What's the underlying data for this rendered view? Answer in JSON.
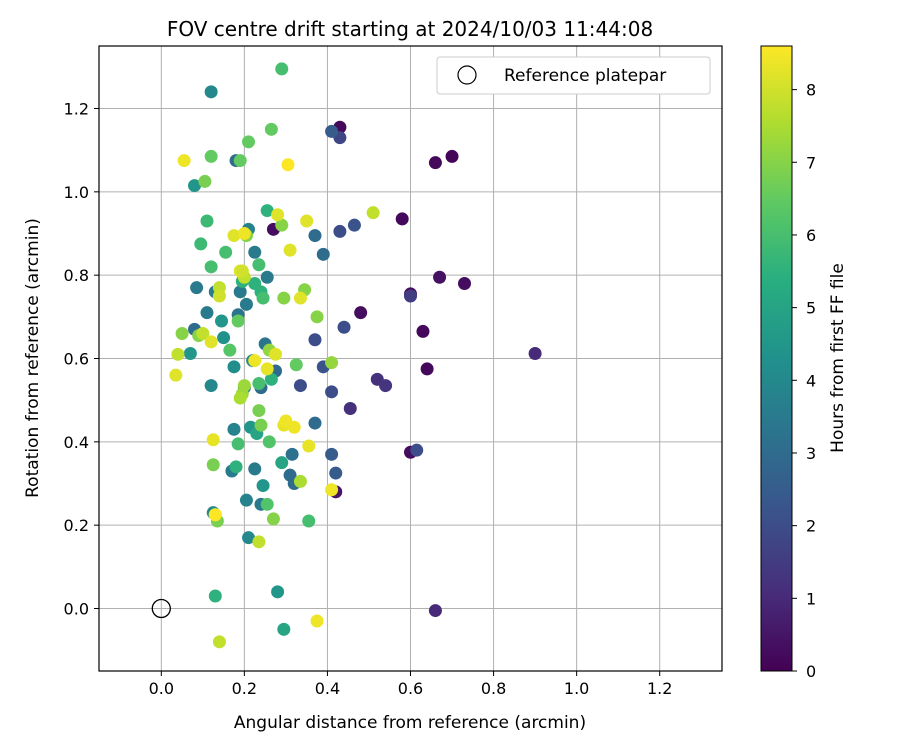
{
  "chart_data": {
    "type": "scatter",
    "title": "FOV centre drift starting at 2024/10/03 11:44:08",
    "xlabel": "Angular distance from reference (arcmin)",
    "ylabel": "Rotation from reference (arcmin)",
    "xlim": [
      -0.15,
      1.35
    ],
    "ylim": [
      -0.15,
      1.35
    ],
    "x_ticks": [
      "0.0",
      "0.2",
      "0.4",
      "0.6",
      "0.8",
      "1.0",
      "1.2"
    ],
    "y_ticks": [
      "0.0",
      "0.2",
      "0.4",
      "0.6",
      "0.8",
      "1.0",
      "1.2"
    ],
    "grid": true,
    "legend": {
      "position": "top-right",
      "entries": [
        "Reference platepar"
      ]
    },
    "reference_point": {
      "x": 0.0,
      "y": 0.0
    },
    "colorbar": {
      "label": "Hours from first FF file",
      "range": [
        0,
        8.6
      ],
      "ticks": [
        "0",
        "1",
        "2",
        "3",
        "4",
        "5",
        "6",
        "7",
        "8"
      ],
      "colormap": "viridis"
    },
    "points": [
      {
        "x": 0.43,
        "y": 1.155,
        "c": 0.2
      },
      {
        "x": 0.7,
        "y": 1.085,
        "c": 0.1
      },
      {
        "x": 0.66,
        "y": 1.07,
        "c": 0.2
      },
      {
        "x": 0.58,
        "y": 0.935,
        "c": 0.2
      },
      {
        "x": 0.6,
        "y": 0.755,
        "c": 0.3
      },
      {
        "x": 0.67,
        "y": 0.795,
        "c": 0.4
      },
      {
        "x": 0.73,
        "y": 0.78,
        "c": 0.3
      },
      {
        "x": 0.48,
        "y": 0.71,
        "c": 0.3
      },
      {
        "x": 0.63,
        "y": 0.665,
        "c": 0.2
      },
      {
        "x": 0.64,
        "y": 0.575,
        "c": 0.2
      },
      {
        "x": 0.6,
        "y": 0.375,
        "c": 0.3
      },
      {
        "x": 0.42,
        "y": 0.28,
        "c": 0.5
      },
      {
        "x": 0.66,
        "y": -0.005,
        "c": 1.0
      },
      {
        "x": 0.9,
        "y": 0.612,
        "c": 1.0
      },
      {
        "x": 0.6,
        "y": 0.75,
        "c": 1.5
      },
      {
        "x": 0.52,
        "y": 0.55,
        "c": 1.2
      },
      {
        "x": 0.54,
        "y": 0.535,
        "c": 1.3
      },
      {
        "x": 0.455,
        "y": 0.48,
        "c": 1.2
      },
      {
        "x": 0.43,
        "y": 1.13,
        "c": 1.8
      },
      {
        "x": 0.41,
        "y": 1.145,
        "c": 2.5
      },
      {
        "x": 0.465,
        "y": 0.92,
        "c": 2.2
      },
      {
        "x": 0.43,
        "y": 0.905,
        "c": 2.0
      },
      {
        "x": 0.44,
        "y": 0.675,
        "c": 2.0
      },
      {
        "x": 0.37,
        "y": 0.645,
        "c": 2.0
      },
      {
        "x": 0.39,
        "y": 0.58,
        "c": 2.2
      },
      {
        "x": 0.41,
        "y": 0.52,
        "c": 2.0
      },
      {
        "x": 0.335,
        "y": 0.535,
        "c": 2.0
      },
      {
        "x": 0.42,
        "y": 0.325,
        "c": 2.5
      },
      {
        "x": 0.41,
        "y": 0.37,
        "c": 2.5
      },
      {
        "x": 0.615,
        "y": 0.38,
        "c": 2.0
      },
      {
        "x": 0.27,
        "y": 0.91,
        "c": 0.3
      },
      {
        "x": 0.39,
        "y": 0.85,
        "c": 3.0
      },
      {
        "x": 0.37,
        "y": 0.895,
        "c": 3.0
      },
      {
        "x": 0.31,
        "y": 0.32,
        "c": 3.0
      },
      {
        "x": 0.32,
        "y": 0.3,
        "c": 3.0
      },
      {
        "x": 0.37,
        "y": 0.445,
        "c": 3.0
      },
      {
        "x": 0.315,
        "y": 0.37,
        "c": 3.2
      },
      {
        "x": 0.275,
        "y": 0.57,
        "c": 3.0
      },
      {
        "x": 0.25,
        "y": 0.635,
        "c": 3.3
      },
      {
        "x": 0.24,
        "y": 0.53,
        "c": 3.0
      },
      {
        "x": 0.255,
        "y": 0.795,
        "c": 3.5
      },
      {
        "x": 0.18,
        "y": 1.075,
        "c": 3.0
      },
      {
        "x": 0.21,
        "y": 0.91,
        "c": 3.8
      },
      {
        "x": 0.225,
        "y": 0.855,
        "c": 3.5
      },
      {
        "x": 0.19,
        "y": 0.76,
        "c": 3.5
      },
      {
        "x": 0.13,
        "y": 0.76,
        "c": 3.5
      },
      {
        "x": 0.085,
        "y": 0.77,
        "c": 3.5
      },
      {
        "x": 0.08,
        "y": 0.67,
        "c": 3.0
      },
      {
        "x": 0.11,
        "y": 0.71,
        "c": 3.5
      },
      {
        "x": 0.185,
        "y": 0.705,
        "c": 3.3
      },
      {
        "x": 0.205,
        "y": 0.73,
        "c": 3.5
      },
      {
        "x": 0.2,
        "y": 0.53,
        "c": 3.5
      },
      {
        "x": 0.17,
        "y": 0.33,
        "c": 3.5
      },
      {
        "x": 0.225,
        "y": 0.335,
        "c": 3.5
      },
      {
        "x": 0.24,
        "y": 0.25,
        "c": 3.5
      },
      {
        "x": 0.205,
        "y": 0.26,
        "c": 3.8
      },
      {
        "x": 0.21,
        "y": 0.17,
        "c": 4.0
      },
      {
        "x": 0.175,
        "y": 0.43,
        "c": 3.8
      },
      {
        "x": 0.12,
        "y": 0.535,
        "c": 4.0
      },
      {
        "x": 0.12,
        "y": 1.24,
        "c": 4.0
      },
      {
        "x": 0.08,
        "y": 1.015,
        "c": 4.5
      },
      {
        "x": 0.07,
        "y": 0.612,
        "c": 4.5
      },
      {
        "x": 0.145,
        "y": 0.69,
        "c": 4.5
      },
      {
        "x": 0.15,
        "y": 0.65,
        "c": 4.3
      },
      {
        "x": 0.175,
        "y": 0.58,
        "c": 4.2
      },
      {
        "x": 0.22,
        "y": 0.595,
        "c": 4.0
      },
      {
        "x": 0.245,
        "y": 0.295,
        "c": 4.5
      },
      {
        "x": 0.215,
        "y": 0.435,
        "c": 4.5
      },
      {
        "x": 0.23,
        "y": 0.42,
        "c": 5.0
      },
      {
        "x": 0.125,
        "y": 0.23,
        "c": 4.0
      },
      {
        "x": 0.28,
        "y": 0.04,
        "c": 4.5
      },
      {
        "x": 0.295,
        "y": -0.05,
        "c": 5.0
      },
      {
        "x": 0.13,
        "y": 0.03,
        "c": 5.5
      },
      {
        "x": 0.29,
        "y": 0.35,
        "c": 5.0
      },
      {
        "x": 0.255,
        "y": 0.955,
        "c": 5.5
      },
      {
        "x": 0.195,
        "y": 0.785,
        "c": 5.5
      },
      {
        "x": 0.24,
        "y": 0.76,
        "c": 5.5
      },
      {
        "x": 0.235,
        "y": 0.825,
        "c": 6.0
      },
      {
        "x": 0.155,
        "y": 0.855,
        "c": 6.0
      },
      {
        "x": 0.12,
        "y": 0.82,
        "c": 6.0
      },
      {
        "x": 0.11,
        "y": 0.93,
        "c": 5.8
      },
      {
        "x": 0.095,
        "y": 0.875,
        "c": 5.8
      },
      {
        "x": 0.29,
        "y": 1.295,
        "c": 6.0
      },
      {
        "x": 0.265,
        "y": 0.55,
        "c": 5.5
      },
      {
        "x": 0.185,
        "y": 0.395,
        "c": 6.0
      },
      {
        "x": 0.235,
        "y": 0.54,
        "c": 6.0
      },
      {
        "x": 0.255,
        "y": 0.25,
        "c": 6.2
      },
      {
        "x": 0.355,
        "y": 0.21,
        "c": 6.0
      },
      {
        "x": 0.26,
        "y": 0.4,
        "c": 6.2
      },
      {
        "x": 0.165,
        "y": 0.62,
        "c": 6.3
      },
      {
        "x": 0.18,
        "y": 0.34,
        "c": 5.5
      },
      {
        "x": 0.225,
        "y": 0.78,
        "c": 5.5
      },
      {
        "x": 0.245,
        "y": 0.745,
        "c": 6.0
      },
      {
        "x": 0.12,
        "y": 1.085,
        "c": 6.5
      },
      {
        "x": 0.105,
        "y": 1.025,
        "c": 6.8
      },
      {
        "x": 0.21,
        "y": 1.12,
        "c": 6.5
      },
      {
        "x": 0.265,
        "y": 1.15,
        "c": 6.5
      },
      {
        "x": 0.19,
        "y": 1.075,
        "c": 6.5
      },
      {
        "x": 0.185,
        "y": 0.69,
        "c": 6.5
      },
      {
        "x": 0.235,
        "y": 0.475,
        "c": 6.8
      },
      {
        "x": 0.325,
        "y": 0.585,
        "c": 6.5
      },
      {
        "x": 0.24,
        "y": 0.44,
        "c": 6.8
      },
      {
        "x": 0.125,
        "y": 0.345,
        "c": 6.8
      },
      {
        "x": 0.135,
        "y": 0.21,
        "c": 6.8
      },
      {
        "x": 0.27,
        "y": 0.215,
        "c": 7.0
      },
      {
        "x": 0.05,
        "y": 0.66,
        "c": 7.0
      },
      {
        "x": 0.09,
        "y": 0.655,
        "c": 7.0
      },
      {
        "x": 0.375,
        "y": 0.7,
        "c": 7.0
      },
      {
        "x": 0.345,
        "y": 0.765,
        "c": 7.0
      },
      {
        "x": 0.295,
        "y": 0.745,
        "c": 7.0
      },
      {
        "x": 0.205,
        "y": 0.895,
        "c": 7.0
      },
      {
        "x": 0.29,
        "y": 0.92,
        "c": 7.0
      },
      {
        "x": 0.26,
        "y": 0.62,
        "c": 7.2
      },
      {
        "x": 0.195,
        "y": 0.515,
        "c": 7.3
      },
      {
        "x": 0.2,
        "y": 0.535,
        "c": 7.3
      },
      {
        "x": 0.19,
        "y": 0.505,
        "c": 7.5
      },
      {
        "x": 0.41,
        "y": 0.59,
        "c": 7.2
      },
      {
        "x": 0.335,
        "y": 0.305,
        "c": 7.5
      },
      {
        "x": 0.51,
        "y": 0.95,
        "c": 7.8
      },
      {
        "x": 0.2,
        "y": 0.795,
        "c": 7.8
      },
      {
        "x": 0.14,
        "y": 0.77,
        "c": 7.8
      },
      {
        "x": 0.14,
        "y": -0.08,
        "c": 7.8
      },
      {
        "x": 0.04,
        "y": 0.61,
        "c": 7.8
      },
      {
        "x": 0.1,
        "y": 0.66,
        "c": 7.8
      },
      {
        "x": 0.13,
        "y": 0.225,
        "c": 8.0
      },
      {
        "x": 0.14,
        "y": 0.75,
        "c": 8.0
      },
      {
        "x": 0.19,
        "y": 0.81,
        "c": 8.2
      },
      {
        "x": 0.195,
        "y": 0.81,
        "c": 8.0
      },
      {
        "x": 0.235,
        "y": 0.16,
        "c": 7.8
      },
      {
        "x": 0.28,
        "y": 0.945,
        "c": 8.2
      },
      {
        "x": 0.35,
        "y": 0.93,
        "c": 8.2
      },
      {
        "x": 0.175,
        "y": 0.895,
        "c": 8.2
      },
      {
        "x": 0.2,
        "y": 0.9,
        "c": 8.4
      },
      {
        "x": 0.055,
        "y": 1.075,
        "c": 8.4
      },
      {
        "x": 0.305,
        "y": 1.065,
        "c": 8.6
      },
      {
        "x": 0.31,
        "y": 0.86,
        "c": 8.2
      },
      {
        "x": 0.335,
        "y": 0.745,
        "c": 8.2
      },
      {
        "x": 0.12,
        "y": 0.64,
        "c": 8.2
      },
      {
        "x": 0.035,
        "y": 0.56,
        "c": 8.2
      },
      {
        "x": 0.275,
        "y": 0.61,
        "c": 8.2
      },
      {
        "x": 0.225,
        "y": 0.595,
        "c": 8.4
      },
      {
        "x": 0.255,
        "y": 0.575,
        "c": 8.3
      },
      {
        "x": 0.125,
        "y": 0.405,
        "c": 8.3
      },
      {
        "x": 0.295,
        "y": 0.44,
        "c": 8.3
      },
      {
        "x": 0.3,
        "y": 0.45,
        "c": 8.4
      },
      {
        "x": 0.32,
        "y": 0.435,
        "c": 8.4
      },
      {
        "x": 0.355,
        "y": 0.39,
        "c": 8.3
      },
      {
        "x": 0.41,
        "y": 0.285,
        "c": 8.4
      },
      {
        "x": 0.375,
        "y": -0.03,
        "c": 8.4
      },
      {
        "x": 0.13,
        "y": 0.225,
        "c": 8.6
      }
    ]
  }
}
